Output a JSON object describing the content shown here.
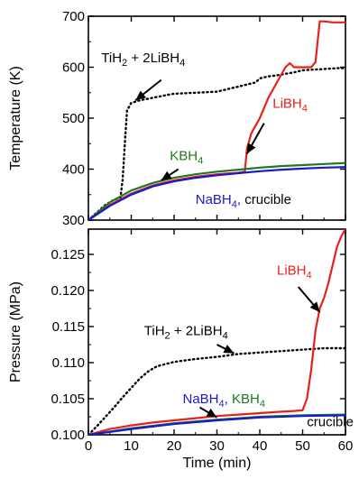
{
  "chart_data": [
    {
      "type": "line",
      "xlabel": "",
      "ylabel": "Temperature (K)",
      "xlim": [
        0,
        60
      ],
      "ylim": [
        300,
        700
      ],
      "x_ticks": [
        0,
        10,
        20,
        30,
        40,
        50,
        60
      ],
      "y_ticks": [
        300,
        400,
        500,
        600,
        700
      ],
      "grid": false,
      "series": [
        {
          "key": "tih2",
          "color": "#000000",
          "dash": "dotted",
          "points": [
            [
              0,
              300
            ],
            [
              2,
              315
            ],
            [
              4,
              330
            ],
            [
              6,
              340
            ],
            [
              7.5,
              345
            ],
            [
              8,
              380
            ],
            [
              8.5,
              450
            ],
            [
              9,
              515
            ],
            [
              10,
              530
            ],
            [
              12,
              535
            ],
            [
              15,
              540
            ],
            [
              18,
              545
            ],
            [
              20,
              548
            ],
            [
              25,
              550
            ],
            [
              30,
              552
            ],
            [
              33,
              558
            ],
            [
              35,
              562
            ],
            [
              37,
              566
            ],
            [
              39,
              570
            ],
            [
              40,
              578
            ],
            [
              42,
              582
            ],
            [
              44,
              584
            ],
            [
              46,
              587
            ],
            [
              48,
              590
            ],
            [
              50,
              594
            ],
            [
              52,
              595
            ],
            [
              54,
              596
            ],
            [
              56,
              597
            ],
            [
              58,
              598
            ],
            [
              60,
              598
            ]
          ]
        },
        {
          "key": "libh4",
          "color": "#e8201a",
          "dash": "solid",
          "points": [
            [
              0,
              300
            ],
            [
              5,
              330
            ],
            [
              10,
              352
            ],
            [
              15,
              368
            ],
            [
              20,
              378
            ],
            [
              25,
              385
            ],
            [
              30,
              390
            ],
            [
              35,
              393
            ],
            [
              36.5,
              395
            ],
            [
              37,
              440
            ],
            [
              38,
              470
            ],
            [
              40,
              500
            ],
            [
              42,
              540
            ],
            [
              44,
              570
            ],
            [
              46,
              600
            ],
            [
              47,
              608
            ],
            [
              48,
              600
            ],
            [
              50,
              600
            ],
            [
              52,
              600
            ],
            [
              53,
              610
            ],
            [
              53.5,
              650
            ],
            [
              54,
              690
            ],
            [
              55,
              690
            ],
            [
              57,
              688
            ],
            [
              60,
              688
            ]
          ]
        },
        {
          "key": "kbh4",
          "color": "#1f7a1f",
          "dash": "solid",
          "points": [
            [
              0,
              300
            ],
            [
              5,
              335
            ],
            [
              10,
              358
            ],
            [
              15,
              373
            ],
            [
              20,
              383
            ],
            [
              25,
              390
            ],
            [
              30,
              395
            ],
            [
              35,
              399
            ],
            [
              40,
              403
            ],
            [
              45,
              406
            ],
            [
              50,
              408
            ],
            [
              55,
              410
            ],
            [
              60,
              412
            ]
          ]
        },
        {
          "key": "nabh4",
          "color": "#1a1acd",
          "dash": "solid",
          "points": [
            [
              0,
              300
            ],
            [
              5,
              328
            ],
            [
              10,
              350
            ],
            [
              15,
              366
            ],
            [
              20,
              376
            ],
            [
              25,
              383
            ],
            [
              30,
              388
            ],
            [
              35,
              392
            ],
            [
              40,
              396
            ],
            [
              45,
              399
            ],
            [
              50,
              401
            ],
            [
              55,
              403
            ],
            [
              60,
              404
            ]
          ]
        }
      ],
      "annotations": [
        {
          "key": "tih2",
          "text_parts": [
            "TiH",
            "2",
            " + 2LiBH",
            "4"
          ],
          "color": "#000000",
          "at": [
            3,
            610
          ],
          "arrow_from": [
            17,
            575
          ],
          "arrow_to": [
            11,
            535
          ]
        },
        {
          "key": "libh4",
          "text_parts": [
            "LiBH",
            "4"
          ],
          "color": "#e8201a",
          "at": [
            43,
            520
          ],
          "arrow_from": [
            41,
            490
          ],
          "arrow_to": [
            37,
            430
          ]
        },
        {
          "key": "kbh4",
          "text_parts": [
            "KBH",
            "4"
          ],
          "color": "#1f7a1f",
          "at": [
            19,
            418
          ],
          "arrow_from": [
            21,
            400
          ],
          "arrow_to": [
            17,
            378
          ]
        },
        {
          "key": "nabh4",
          "text_parts": [
            "NaBH",
            "4",
            ", ",
            "crucible"
          ],
          "color": "#1a1acd",
          "tail_color": "#000000",
          "at": [
            25,
            332
          ]
        }
      ]
    },
    {
      "type": "line",
      "xlabel": "Time (min)",
      "ylabel": "Pressure (MPa)",
      "xlim": [
        0,
        60
      ],
      "ylim": [
        0.1,
        0.1285
      ],
      "x_ticks": [
        0,
        10,
        20,
        30,
        40,
        50,
        60
      ],
      "y_ticks": [
        0.1,
        0.105,
        0.11,
        0.115,
        0.12,
        0.125
      ],
      "y_tick_labels": [
        "0.100",
        "0.105",
        "0.110",
        "0.115",
        "0.120",
        "0.125"
      ],
      "grid": false,
      "series": [
        {
          "key": "tih2",
          "color": "#000000",
          "dash": "dotted",
          "points": [
            [
              0,
              0.1
            ],
            [
              2,
              0.1012
            ],
            [
              4,
              0.1025
            ],
            [
              6,
              0.1038
            ],
            [
              8,
              0.1052
            ],
            [
              10,
              0.1065
            ],
            [
              12,
              0.1078
            ],
            [
              14,
              0.1088
            ],
            [
              16,
              0.1095
            ],
            [
              18,
              0.1098
            ],
            [
              20,
              0.1101
            ],
            [
              25,
              0.1105
            ],
            [
              30,
              0.1108
            ],
            [
              35,
              0.1112
            ],
            [
              40,
              0.1114
            ],
            [
              45,
              0.1116
            ],
            [
              50,
              0.1118
            ],
            [
              55,
              0.112
            ],
            [
              60,
              0.112
            ]
          ]
        },
        {
          "key": "libh4",
          "color": "#e8201a",
          "dash": "solid",
          "points": [
            [
              0,
              0.1
            ],
            [
              5,
              0.1008
            ],
            [
              10,
              0.1013
            ],
            [
              15,
              0.1017
            ],
            [
              20,
              0.102
            ],
            [
              25,
              0.1023
            ],
            [
              30,
              0.1026
            ],
            [
              35,
              0.1028
            ],
            [
              40,
              0.103
            ],
            [
              45,
              0.1032
            ],
            [
              48,
              0.1033
            ],
            [
              50,
              0.1034
            ],
            [
              51,
              0.105
            ],
            [
              52,
              0.109
            ],
            [
              53,
              0.1145
            ],
            [
              54,
              0.1175
            ],
            [
              55,
              0.119
            ],
            [
              56,
              0.121
            ],
            [
              57,
              0.1235
            ],
            [
              58,
              0.126
            ],
            [
              59,
              0.1275
            ],
            [
              60,
              0.1285
            ]
          ]
        },
        {
          "key": "kbh4",
          "color": "#1f7a1f",
          "dash": "solid",
          "points": [
            [
              0,
              0.1
            ],
            [
              10,
              0.1009
            ],
            [
              20,
              0.1016
            ],
            [
              30,
              0.1021
            ],
            [
              40,
              0.1025
            ],
            [
              50,
              0.1027
            ],
            [
              60,
              0.1028
            ]
          ]
        },
        {
          "key": "nabh4",
          "color": "#1a1acd",
          "dash": "solid",
          "points": [
            [
              0,
              0.1
            ],
            [
              10,
              0.1008
            ],
            [
              20,
              0.1015
            ],
            [
              30,
              0.102
            ],
            [
              40,
              0.1024
            ],
            [
              50,
              0.1026
            ],
            [
              60,
              0.1027
            ]
          ]
        }
      ],
      "annotations": [
        {
          "key": "tih2",
          "text_parts": [
            "TiH",
            "2",
            " + 2LiBH",
            "4"
          ],
          "color": "#000000",
          "at": [
            13,
            0.1138
          ],
          "arrow_from": [
            30,
            0.1125
          ],
          "arrow_to": [
            34,
            0.1113
          ]
        },
        {
          "key": "libh4",
          "text_parts": [
            "LiBH",
            "4"
          ],
          "color": "#e8201a",
          "at": [
            44,
            0.1222
          ],
          "arrow_from": [
            49,
            0.1205
          ],
          "arrow_to": [
            54,
            0.117
          ]
        },
        {
          "key": "nabh4",
          "text_parts": [
            "NaBH",
            "4",
            ", ",
            "KBH",
            "4"
          ],
          "color": "#1a1acd",
          "second_color": "#1f7a1f",
          "at": [
            22,
            0.1044
          ],
          "arrow_from": [
            26,
            0.1038
          ],
          "arrow_to": [
            30,
            0.1024
          ]
        },
        {
          "key": "crucible",
          "text_parts": [
            "crucible"
          ],
          "color": "#000000",
          "at": [
            51,
            0.1012
          ]
        }
      ]
    }
  ]
}
